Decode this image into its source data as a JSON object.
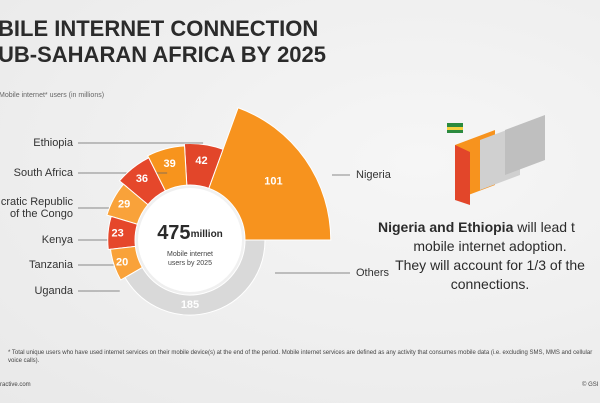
{
  "chart_data": {
    "type": "polar-bar",
    "title_lines": [
      "BILE INTERNET CONNECTION",
      "UB-SAHARAN AFRICA BY 2025"
    ],
    "axis_label": "Mobile internet* users (in millions)",
    "categories": [
      "Nigeria",
      "Ethiopia",
      "South Africa",
      "cratic Republic of the Congo",
      "Kenya",
      "Tanzania",
      "Uganda",
      "Others"
    ],
    "values": [
      101,
      42,
      39,
      36,
      29,
      23,
      20,
      185
    ],
    "colors": [
      "#f7931e",
      "#e2462a",
      "#f7941d",
      "#e5472b",
      "#f9a23a",
      "#e5472b",
      "#f9a23a",
      "#d9d9d9"
    ],
    "total": {
      "value": 475,
      "unit": "million",
      "label_lines": [
        "Mobile internet",
        "users by 2025"
      ]
    },
    "callout": {
      "bold": "Nigeria and Ethiopia",
      "lines": [
        " will lead t",
        "mobile internet adoption.",
        "They will account for 1/3 of the",
        "connections."
      ]
    },
    "footnote": "* Total unique users who have used internet services on their mobile device(s) at the end of the period. Mobile internet services are defined as any activity that consumes mobile data (i.e. excluding SMS, MMS and cellular voice calls).",
    "footer_left": "ractive.com",
    "footer_right": "© GSI"
  }
}
